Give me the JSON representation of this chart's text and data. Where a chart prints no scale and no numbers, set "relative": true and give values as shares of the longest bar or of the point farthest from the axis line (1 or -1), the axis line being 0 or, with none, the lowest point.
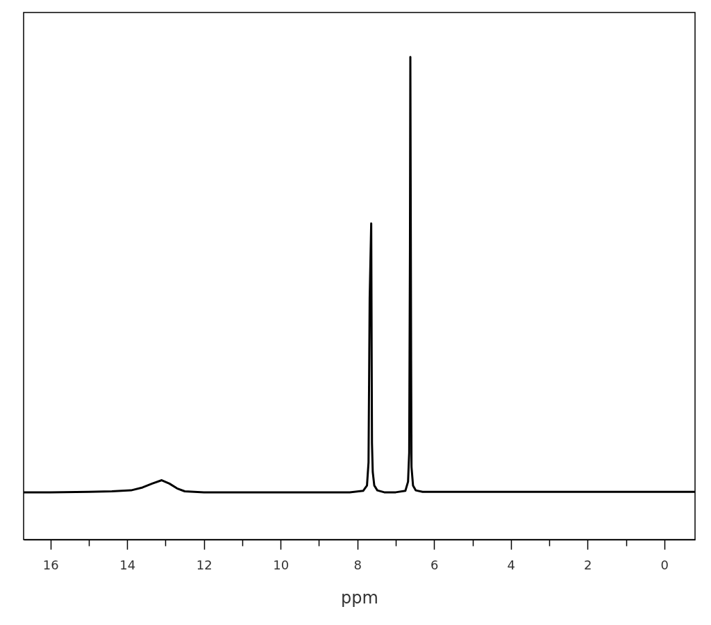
{
  "chart_data": {
    "type": "line",
    "xlabel": "ppm",
    "relative": true,
    "xlim": [
      16.7,
      -0.8
    ],
    "xticks": [
      16,
      {
        "value": 15,
        "label": null
      },
      14,
      {
        "value": 13,
        "label": null
      },
      12,
      {
        "value": 11,
        "label": null
      },
      10,
      {
        "value": 9,
        "label": null
      },
      8,
      {
        "value": 7,
        "label": null
      },
      6,
      {
        "value": 5,
        "label": null
      },
      4,
      {
        "value": 3,
        "label": null
      },
      2,
      {
        "value": 1,
        "label": null
      },
      0
    ],
    "x": [
      16.7,
      16.0,
      15.0,
      14.4,
      13.9,
      13.6,
      13.35,
      13.1,
      12.9,
      12.7,
      12.5,
      12.0,
      11.0,
      10.0,
      9.0,
      8.2,
      7.85,
      7.75,
      7.71,
      7.68,
      7.64,
      7.62,
      7.6,
      7.56,
      7.48,
      7.3,
      7.0,
      6.75,
      6.68,
      6.65,
      6.63,
      6.62,
      6.6,
      6.59,
      6.55,
      6.48,
      6.3,
      6.0,
      5.0,
      4.0,
      3.0,
      2.0,
      1.0,
      0.0,
      -0.8
    ],
    "series": [
      {
        "color": "#000000",
        "values": [
          0.098,
          0.098,
          0.099,
          0.1,
          0.102,
          0.108,
          0.116,
          0.123,
          0.116,
          0.106,
          0.1,
          0.098,
          0.098,
          0.098,
          0.098,
          0.098,
          0.101,
          0.112,
          0.16,
          0.5,
          0.655,
          0.2,
          0.14,
          0.112,
          0.102,
          0.098,
          0.098,
          0.101,
          0.12,
          0.18,
          0.6,
          1.0,
          0.37,
          0.15,
          0.112,
          0.102,
          0.099,
          0.099,
          0.099,
          0.099,
          0.099,
          0.099,
          0.099,
          0.099,
          0.099
        ]
      }
    ]
  }
}
